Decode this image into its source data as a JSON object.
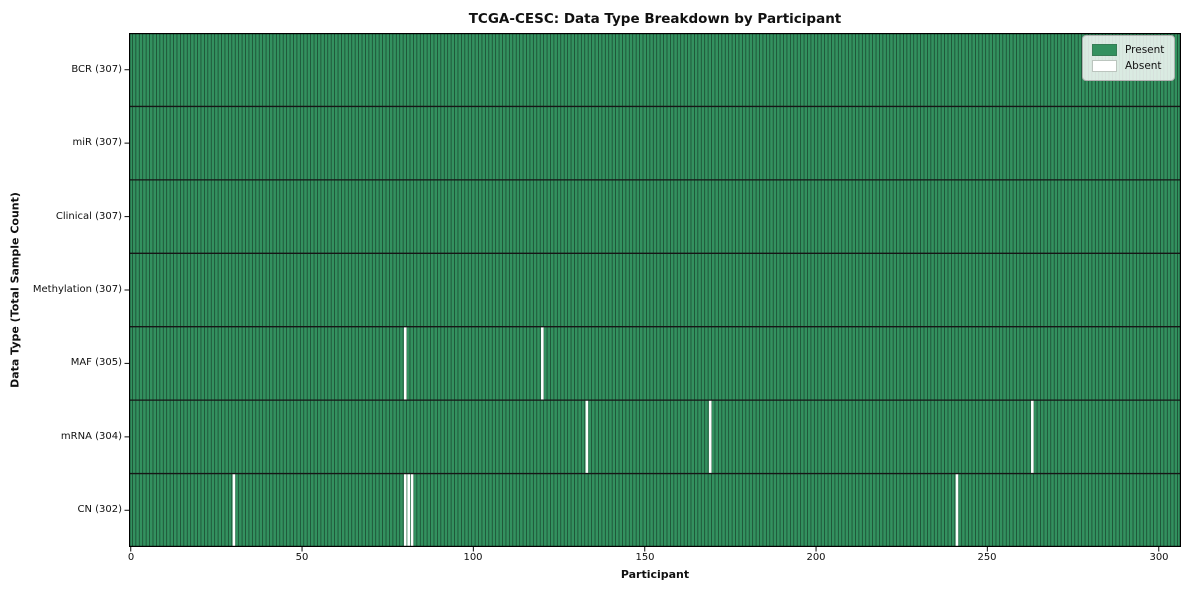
{
  "chart_data": {
    "type": "heatmap",
    "title": "TCGA-CESC: Data Type Breakdown by Participant",
    "xlabel": "Participant",
    "ylabel": "Data Type (Total Sample Count)",
    "n_participants": 307,
    "xlim": [
      -0.5,
      306.5
    ],
    "x_ticks": [
      0,
      50,
      100,
      150,
      200,
      250,
      300
    ],
    "rows": [
      {
        "label": "BCR (307)",
        "data_type": "BCR",
        "total": 307,
        "absent_participants": []
      },
      {
        "label": "miR (307)",
        "data_type": "miR",
        "total": 307,
        "absent_participants": []
      },
      {
        "label": "Clinical (307)",
        "data_type": "Clinical",
        "total": 307,
        "absent_participants": []
      },
      {
        "label": "Methylation (307)",
        "data_type": "Methylation",
        "total": 307,
        "absent_participants": []
      },
      {
        "label": "MAF (305)",
        "data_type": "MAF",
        "total": 305,
        "absent_participants": [
          80,
          120
        ]
      },
      {
        "label": "mRNA (304)",
        "data_type": "mRNA",
        "total": 304,
        "absent_participants": [
          133,
          169,
          263
        ]
      },
      {
        "label": "CN (302)",
        "data_type": "CN",
        "total": 302,
        "absent_participants": [
          30,
          80,
          81,
          82,
          241
        ]
      }
    ],
    "legend": [
      {
        "label": "Present",
        "color": "#33915f"
      },
      {
        "label": "Absent",
        "color": "#ffffff"
      }
    ],
    "colors": {
      "present": "#33915f",
      "absent": "#ffffff",
      "cell_edge": "#1b4b32",
      "row_separator": "#161616",
      "frame": "#000000",
      "tick": "#222222"
    },
    "legend_position": "upper-right",
    "grid": false
  }
}
